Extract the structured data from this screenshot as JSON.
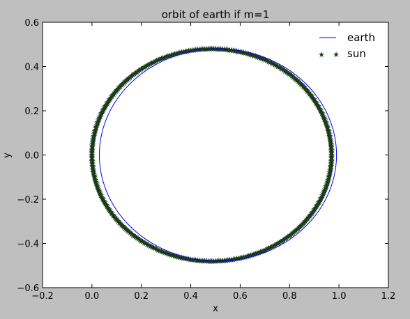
{
  "chart_data": {
    "type": "line",
    "title": "orbit of earth if m=1",
    "xlabel": "x",
    "ylabel": "y",
    "xlim": [
      -0.2,
      1.2
    ],
    "ylim": [
      -0.6,
      0.6
    ],
    "xticks": [
      -0.2,
      0.0,
      0.2,
      0.4,
      0.6,
      0.8,
      1.0,
      1.2
    ],
    "yticks": [
      -0.6,
      -0.4,
      -0.2,
      0.0,
      0.2,
      0.4,
      0.6
    ],
    "xtick_labels": [
      "−0.2",
      "0.0",
      "0.2",
      "0.4",
      "0.6",
      "0.8",
      "1.0",
      "1.2"
    ],
    "ytick_labels": [
      "−0.6",
      "−0.4",
      "−0.2",
      "0.0",
      "0.2",
      "0.4",
      "0.6"
    ],
    "grid": false,
    "legend_position": "top-right",
    "series": [
      {
        "name": "earth",
        "style": "line",
        "color": "#0000ff",
        "shape": "ellipse",
        "center": [
          0.51,
          0.0
        ],
        "rx": 0.48,
        "ry": 0.48
      },
      {
        "name": "sun",
        "style": "marker",
        "marker": "star",
        "color": "#1a3a1a",
        "shape": "ellipse",
        "center": [
          0.485,
          0.0
        ],
        "rx": 0.485,
        "ry": 0.48
      }
    ]
  }
}
